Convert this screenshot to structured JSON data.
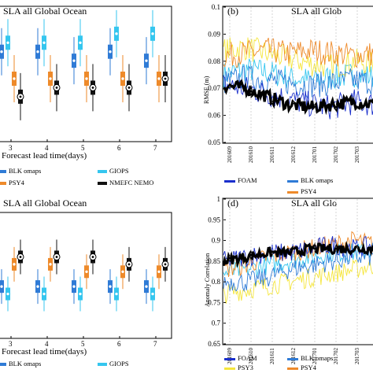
{
  "chart_data": [
    {
      "panel": "a",
      "type": "box",
      "title": "SLA all Global Ocean",
      "xlabel": "Forecast lead time(days)",
      "categories": [
        "3",
        "4",
        "5",
        "6",
        "7"
      ],
      "legend": [
        "BLK omaps",
        "GIOPS",
        "PSY4",
        "NMEFC NEMO"
      ],
      "series": [
        {
          "name": "BLK omaps",
          "color": "#2f7bd6",
          "medians": [
            0.96,
            0.96,
            0.95,
            0.96,
            0.95
          ]
        },
        {
          "name": "GIOPS",
          "color": "#35c6ef",
          "medians": [
            0.97,
            0.97,
            0.97,
            0.98,
            0.98
          ]
        },
        {
          "name": "PSY4",
          "color": "#ee8a2a",
          "medians": [
            0.93,
            0.93,
            0.93,
            0.93,
            0.93
          ]
        },
        {
          "name": "NMEFC NEMO",
          "color": "#111111",
          "medians": [
            0.91,
            0.92,
            0.92,
            0.92,
            0.93
          ]
        }
      ]
    },
    {
      "panel": "b",
      "type": "line",
      "title": "SLA all Glob",
      "label": "(b)",
      "ylabel": "RMSE (m)",
      "yticks": [
        "0.1",
        "0.09",
        "0.08",
        "0.07",
        "0.06",
        "0.05"
      ],
      "ylim": [
        0.05,
        0.1
      ],
      "xticks": [
        "201609",
        "201610",
        "201611",
        "201612",
        "201701",
        "201702",
        "201703"
      ],
      "legend": [
        "FOAM",
        "BLK omaps",
        "PSY4"
      ],
      "series": [
        {
          "name": "FOAM",
          "color": "#1a2fcc",
          "values": [
            0.071,
            0.07,
            0.068,
            0.066,
            0.064,
            0.063,
            0.065,
            0.064
          ]
        },
        {
          "name": "BLK omaps",
          "color": "#2f7bd6",
          "values": [
            0.072,
            0.074,
            0.073,
            0.072,
            0.071,
            0.072,
            0.073,
            0.072
          ]
        },
        {
          "name": "PSY3",
          "color": "#f5e63c",
          "values": [
            0.084,
            0.085,
            0.083,
            0.081,
            0.079,
            0.078,
            0.08,
            0.079
          ]
        },
        {
          "name": "PSY4",
          "color": "#ee8a2a",
          "values": [
            0.082,
            0.083,
            0.084,
            0.083,
            0.084,
            0.083,
            0.082,
            0.083
          ]
        },
        {
          "name": "GIOPS",
          "color": "#35c6ef",
          "values": [
            0.075,
            0.077,
            0.076,
            0.074,
            0.073,
            0.074,
            0.075,
            0.074
          ]
        },
        {
          "name": "NMEFC NEMO",
          "color": "#000000",
          "values": [
            0.071,
            0.07,
            0.067,
            0.064,
            0.063,
            0.064,
            0.065,
            0.064
          ]
        }
      ]
    },
    {
      "panel": "c",
      "type": "box",
      "title": "SLA all Global Ocean",
      "xlabel": "Forecast lead time(days)",
      "categories": [
        "3",
        "4",
        "5",
        "6",
        "7"
      ],
      "legend": [
        "BLK omaps",
        "GIOPS",
        "PSY4",
        "NMEFC NEMO"
      ],
      "series": [
        {
          "name": "BLK omaps",
          "color": "#2f7bd6",
          "medians": [
            0.85,
            0.85,
            0.85,
            0.85,
            0.85
          ]
        },
        {
          "name": "GIOPS",
          "color": "#35c6ef",
          "medians": [
            0.84,
            0.84,
            0.84,
            0.84,
            0.84
          ]
        },
        {
          "name": "PSY4",
          "color": "#ee8a2a",
          "medians": [
            0.88,
            0.88,
            0.87,
            0.87,
            0.87
          ]
        },
        {
          "name": "NMEFC NEMO",
          "color": "#111111",
          "medians": [
            0.89,
            0.89,
            0.89,
            0.88,
            0.88
          ]
        }
      ]
    },
    {
      "panel": "d",
      "type": "line",
      "title": "SLA all Glo",
      "label": "(d)",
      "ylabel": "Anomaly Correlation",
      "yticks": [
        "1",
        "0.95",
        "0.9",
        "0.85",
        "0.8",
        "0.75",
        "0.7",
        "0.65"
      ],
      "ylim": [
        0.65,
        1.0
      ],
      "xticks": [
        "201609",
        "201610",
        "201611",
        "201612",
        "201701",
        "201702",
        "201703"
      ],
      "legend": [
        "FOAM",
        "BLK omaps",
        "PSY3",
        "PSY4"
      ],
      "series": [
        {
          "name": "FOAM",
          "color": "#1a2fcc",
          "values": [
            0.85,
            0.86,
            0.87,
            0.87,
            0.88,
            0.89,
            0.88,
            0.89
          ]
        },
        {
          "name": "BLK omaps",
          "color": "#2f7bd6",
          "values": [
            0.8,
            0.8,
            0.81,
            0.83,
            0.84,
            0.85,
            0.86,
            0.86
          ]
        },
        {
          "name": "PSY3",
          "color": "#f5e63c",
          "values": [
            0.77,
            0.78,
            0.79,
            0.8,
            0.81,
            0.82,
            0.83,
            0.84
          ]
        },
        {
          "name": "PSY4",
          "color": "#ee8a2a",
          "values": [
            0.83,
            0.84,
            0.86,
            0.87,
            0.88,
            0.89,
            0.9,
            0.89
          ]
        },
        {
          "name": "GIOPS",
          "color": "#35c6ef",
          "values": [
            0.82,
            0.83,
            0.84,
            0.85,
            0.86,
            0.87,
            0.87,
            0.88
          ]
        },
        {
          "name": "NMEFC NEMO",
          "color": "#000000",
          "values": [
            0.85,
            0.86,
            0.87,
            0.87,
            0.88,
            0.88,
            0.88,
            0.88
          ]
        }
      ]
    }
  ]
}
